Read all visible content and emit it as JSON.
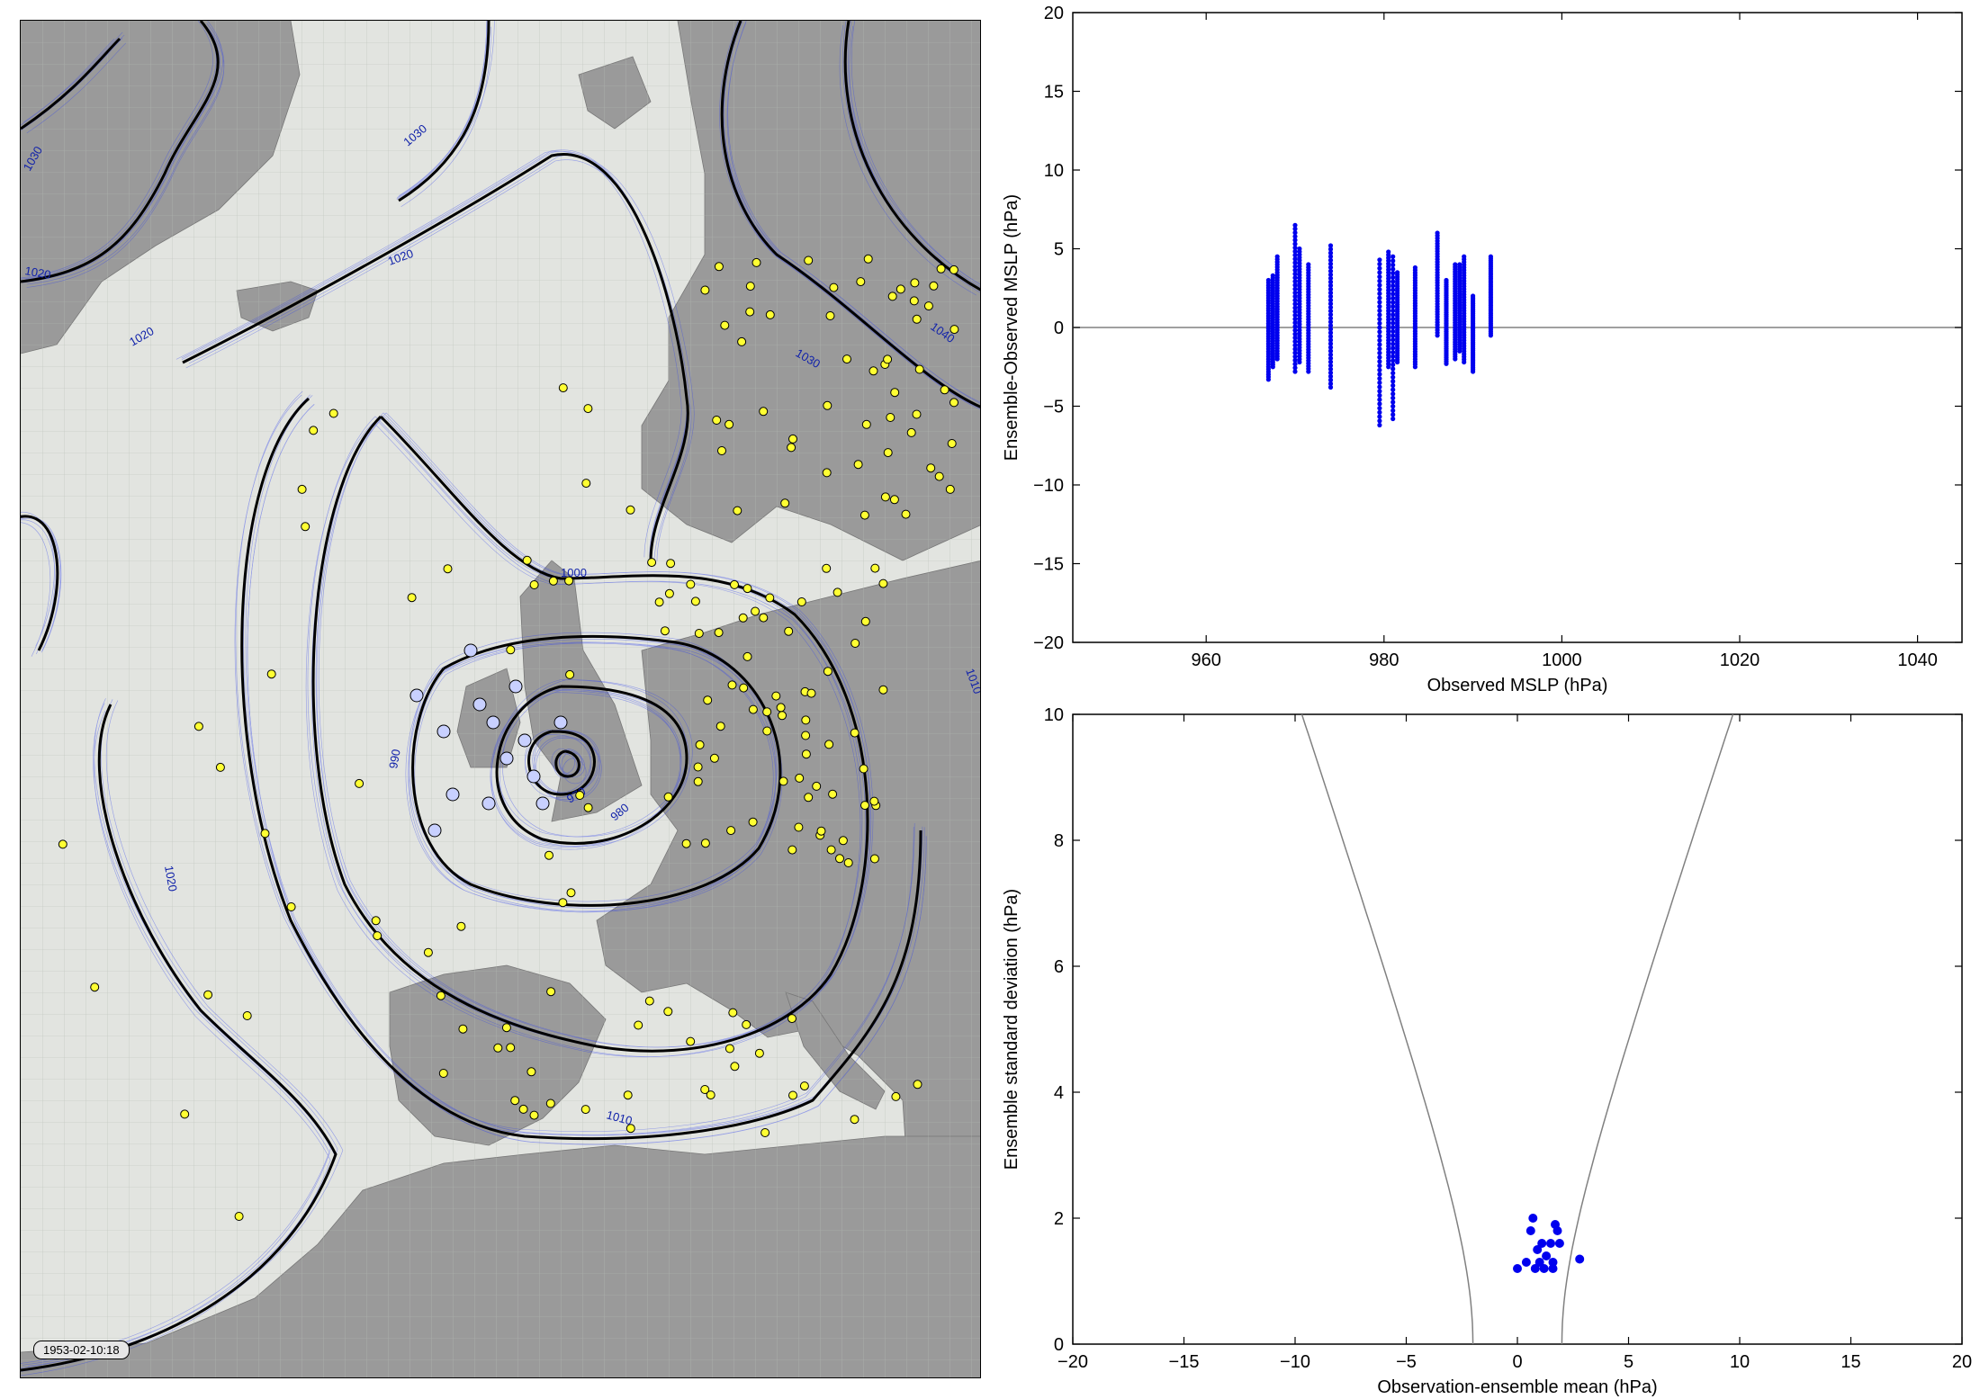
{
  "map": {
    "date_label": "1953-02-10:18",
    "contour_labels": [
      "1030",
      "1030",
      "1020",
      "1020",
      "1020",
      "1030",
      "1040",
      "1000",
      "990",
      "970",
      "980",
      "1020",
      "1010",
      "1010"
    ],
    "colors": {
      "land": "#9a9a9a",
      "sea": "#e2e4e0",
      "ensemble": "#3344ee",
      "mean_contour": "#000000",
      "obs_marker": "#ffff33",
      "assim_marker": "#c8d0ff"
    }
  },
  "chart_data": [
    {
      "type": "scatter",
      "xlabel": "Observed MSLP (hPa)",
      "ylabel": "Ensemble-Observed MSLP (hPa)",
      "xlim": [
        945,
        1045
      ],
      "ylim": [
        -20,
        20
      ],
      "xticks": [
        960,
        980,
        1000,
        1020,
        1040
      ],
      "yticks": [
        -20,
        -15,
        -10,
        -5,
        0,
        5,
        10,
        15,
        20
      ],
      "reference_line_y": 0,
      "stations": [
        {
          "x": 967.0,
          "ymin": -3.3,
          "ymax": 3.0
        },
        {
          "x": 967.5,
          "ymin": -2.5,
          "ymax": 3.3
        },
        {
          "x": 968.0,
          "ymin": -2.0,
          "ymax": 4.5
        },
        {
          "x": 970.0,
          "ymin": -2.8,
          "ymax": 6.5
        },
        {
          "x": 970.5,
          "ymin": -2.2,
          "ymax": 5.0
        },
        {
          "x": 971.5,
          "ymin": -2.8,
          "ymax": 4.0
        },
        {
          "x": 974.0,
          "ymin": -3.8,
          "ymax": 5.2
        },
        {
          "x": 979.5,
          "ymin": -6.2,
          "ymax": 4.3
        },
        {
          "x": 980.5,
          "ymin": -2.5,
          "ymax": 4.8
        },
        {
          "x": 981.0,
          "ymin": -5.8,
          "ymax": 4.5
        },
        {
          "x": 981.5,
          "ymin": -2.2,
          "ymax": 3.5
        },
        {
          "x": 983.5,
          "ymin": -2.5,
          "ymax": 3.8
        },
        {
          "x": 986.0,
          "ymin": -0.5,
          "ymax": 6.0
        },
        {
          "x": 987.0,
          "ymin": -2.3,
          "ymax": 3.0
        },
        {
          "x": 988.0,
          "ymin": -2.0,
          "ymax": 4.0
        },
        {
          "x": 988.5,
          "ymin": -1.5,
          "ymax": 4.0
        },
        {
          "x": 989.0,
          "ymin": -2.2,
          "ymax": 4.5
        },
        {
          "x": 990.0,
          "ymin": -2.8,
          "ymax": 2.0
        },
        {
          "x": 992.0,
          "ymin": -0.5,
          "ymax": 4.5
        }
      ]
    },
    {
      "type": "scatter",
      "xlabel": "Observation-ensemble mean (hPa)",
      "ylabel": "Ensemble standard deviation (hPa)",
      "xlim": [
        -20,
        20
      ],
      "ylim": [
        0,
        10
      ],
      "xticks": [
        -20,
        -15,
        -10,
        -5,
        0,
        5,
        10,
        15,
        20
      ],
      "yticks": [
        0,
        2,
        4,
        6,
        8,
        10
      ],
      "points": [
        {
          "x": 0.0,
          "y": 1.2
        },
        {
          "x": 0.4,
          "y": 1.3
        },
        {
          "x": 0.6,
          "y": 1.8
        },
        {
          "x": 0.7,
          "y": 2.0
        },
        {
          "x": 0.8,
          "y": 1.2
        },
        {
          "x": 0.9,
          "y": 1.5
        },
        {
          "x": 1.0,
          "y": 1.3
        },
        {
          "x": 1.1,
          "y": 1.6
        },
        {
          "x": 1.2,
          "y": 1.2
        },
        {
          "x": 1.3,
          "y": 1.4
        },
        {
          "x": 1.5,
          "y": 1.6
        },
        {
          "x": 1.6,
          "y": 1.3
        },
        {
          "x": 1.6,
          "y": 1.2
        },
        {
          "x": 1.7,
          "y": 1.9
        },
        {
          "x": 1.8,
          "y": 1.8
        },
        {
          "x": 1.9,
          "y": 1.6
        },
        {
          "x": 2.8,
          "y": 1.35
        }
      ],
      "envelope_curves": true
    }
  ]
}
